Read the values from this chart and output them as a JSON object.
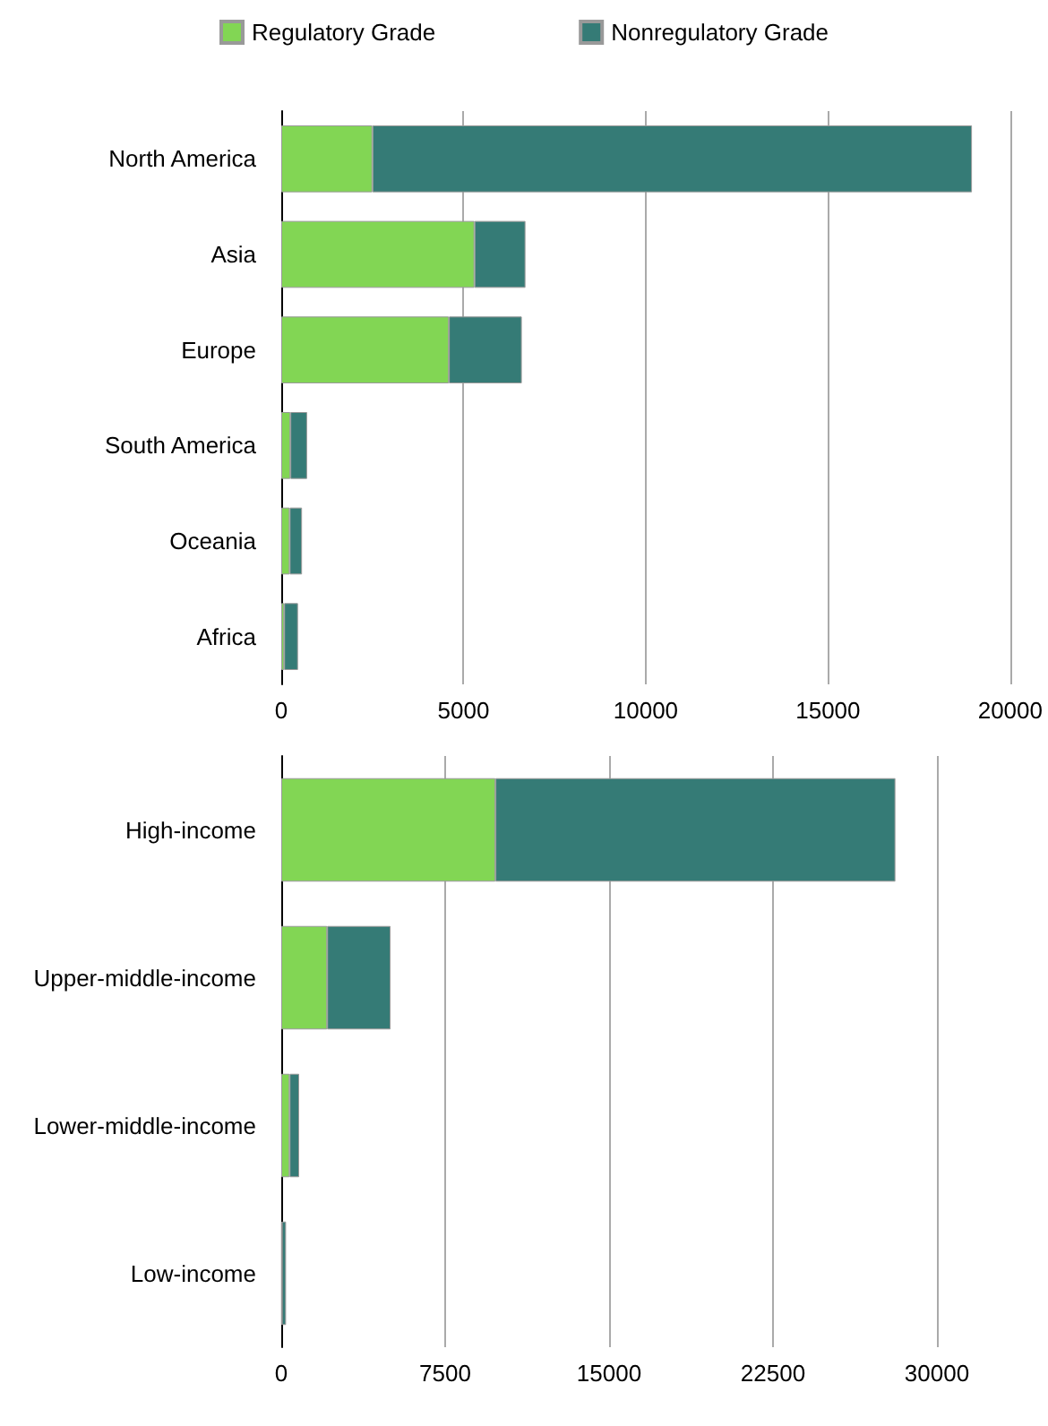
{
  "chart_data": [
    {
      "type": "bar",
      "orientation": "horizontal",
      "stacked": true,
      "categories": [
        "North America",
        "Asia",
        "Europe",
        "South America",
        "Oceania",
        "Africa"
      ],
      "series": [
        {
          "name": "Regulatory Grade",
          "color": "#82d654",
          "values": [
            2500,
            5300,
            4600,
            250,
            230,
            80
          ]
        },
        {
          "name": "Nonregulatory Grade",
          "color": "#357b76",
          "values": [
            16450,
            1400,
            2000,
            460,
            340,
            380
          ]
        }
      ],
      "xlim": [
        0,
        20000
      ],
      "xticks": [
        0,
        5000,
        10000,
        15000,
        20000
      ],
      "grid": "x",
      "legend": "top"
    },
    {
      "type": "bar",
      "orientation": "horizontal",
      "stacked": true,
      "categories": [
        "High-income",
        "Upper-middle-income",
        "Lower-middle-income",
        "Low-income"
      ],
      "series": [
        {
          "color": "#82d654",
          "values": [
            9800,
            2100,
            380,
            30
          ]
        },
        {
          "color": "#357b76",
          "values": [
            18300,
            2900,
            440,
            190
          ]
        }
      ],
      "xlim": [
        0,
        30000
      ],
      "xticks": [
        0,
        7500,
        15000,
        22500,
        30000
      ],
      "grid": "x"
    }
  ]
}
